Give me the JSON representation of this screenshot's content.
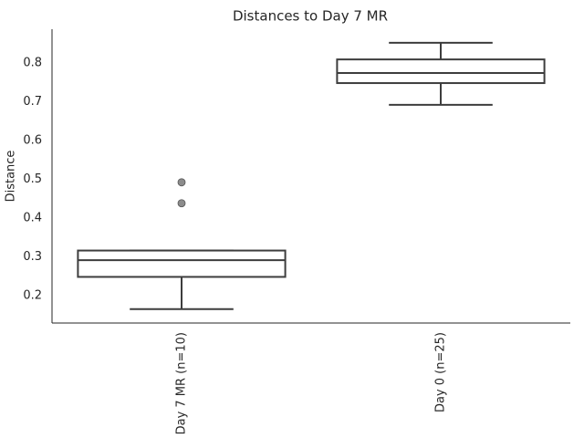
{
  "chart_data": {
    "type": "box",
    "title": "Distances to Day 7 MR",
    "y_label": "Distance",
    "categories": [
      "Day 7 MR (n=10)",
      "Day 0 (n=25)"
    ],
    "boxes": [
      {
        "whisker_low": 0.165,
        "q1": 0.248,
        "median": 0.291,
        "q3": 0.316,
        "whisker_high": 0.316,
        "outliers": [
          0.492,
          0.438
        ]
      },
      {
        "whisker_low": 0.692,
        "q1": 0.748,
        "median": 0.774,
        "q3": 0.809,
        "whisker_high": 0.852,
        "outliers": []
      }
    ],
    "color": "#3d3d3d",
    "box_fill": "#ffffff",
    "outlier_color": "#8c8c8c",
    "ylim": [
      0.129,
      0.887
    ],
    "yticks": [
      0.2,
      0.3,
      0.4,
      0.5,
      0.6,
      0.7,
      0.8
    ]
  }
}
